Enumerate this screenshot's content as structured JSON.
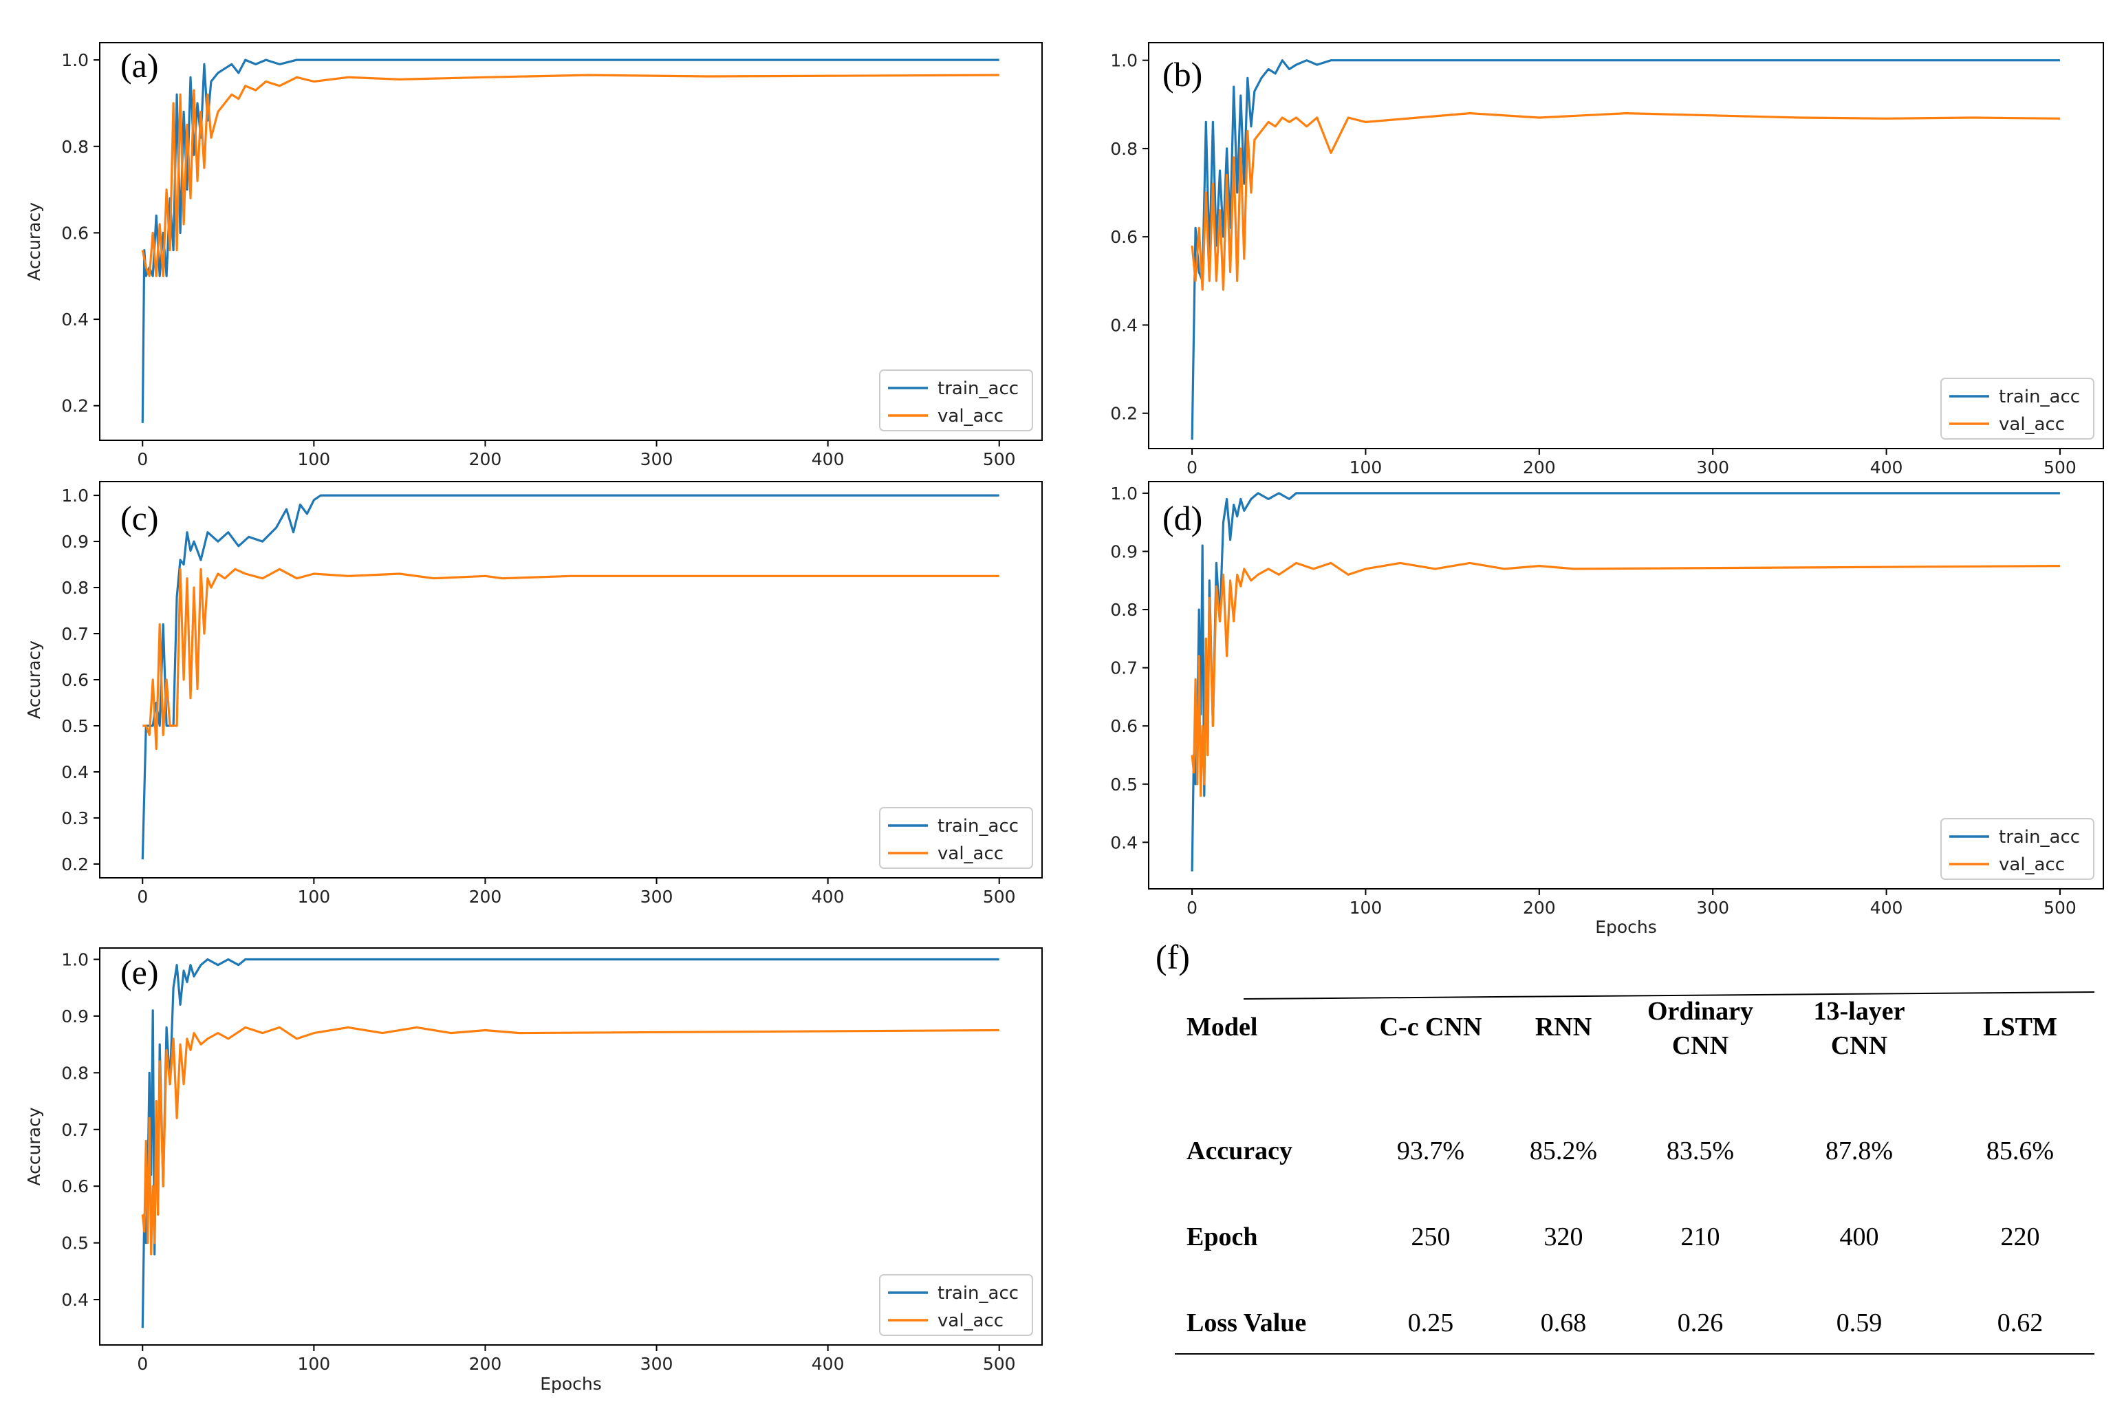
{
  "chart_data": [
    {
      "type": "line",
      "panel_label": "(a)",
      "ylabel": "Accuracy",
      "xlabel": "",
      "xlim": [
        -25,
        525
      ],
      "ylim": [
        0.12,
        1.04
      ],
      "xticks": [
        0,
        100,
        200,
        300,
        400,
        500
      ],
      "yticks": [
        0.2,
        0.4,
        0.6,
        0.8,
        1.0
      ],
      "ytick_labels": [
        "0.2",
        "0.4",
        "0.6",
        "0.8",
        "1.0"
      ],
      "legend": "bottom-right",
      "series": [
        {
          "name": "train_acc",
          "color": "#1f77b4",
          "final": 1.0,
          "x": [
            0,
            1,
            2,
            4,
            6,
            8,
            10,
            12,
            14,
            16,
            18,
            20,
            22,
            24,
            26,
            28,
            30,
            32,
            34,
            36,
            38,
            40,
            44,
            48,
            52,
            56,
            60,
            66,
            72,
            80,
            90,
            100,
            500
          ],
          "y": [
            0.16,
            0.56,
            0.5,
            0.52,
            0.5,
            0.64,
            0.5,
            0.6,
            0.5,
            0.68,
            0.56,
            0.92,
            0.6,
            0.88,
            0.7,
            0.96,
            0.78,
            0.9,
            0.82,
            0.99,
            0.86,
            0.95,
            0.97,
            0.98,
            0.99,
            0.97,
            1.0,
            0.99,
            1.0,
            0.99,
            1.0,
            1.0,
            1.0
          ]
        },
        {
          "name": "val_acc",
          "color": "#ff7f0e",
          "final": 0.965,
          "x": [
            0,
            2,
            4,
            6,
            8,
            10,
            12,
            14,
            16,
            18,
            20,
            22,
            24,
            26,
            28,
            30,
            32,
            34,
            36,
            38,
            40,
            44,
            48,
            52,
            56,
            60,
            66,
            72,
            80,
            90,
            100,
            120,
            150,
            200,
            260,
            330,
            500
          ],
          "y": [
            0.56,
            0.52,
            0.5,
            0.6,
            0.5,
            0.62,
            0.5,
            0.7,
            0.56,
            0.9,
            0.56,
            0.92,
            0.62,
            0.85,
            0.68,
            0.93,
            0.72,
            0.88,
            0.75,
            0.92,
            0.82,
            0.88,
            0.9,
            0.92,
            0.91,
            0.94,
            0.93,
            0.95,
            0.94,
            0.96,
            0.95,
            0.96,
            0.955,
            0.96,
            0.965,
            0.962,
            0.965
          ]
        }
      ]
    },
    {
      "type": "line",
      "panel_label": "(b)",
      "ylabel": "",
      "xlabel": "",
      "xlim": [
        -25,
        525
      ],
      "ylim": [
        0.12,
        1.04
      ],
      "xticks": [
        0,
        100,
        200,
        300,
        400,
        500
      ],
      "yticks": [
        0.2,
        0.4,
        0.6,
        0.8,
        1.0
      ],
      "ytick_labels": [
        "0.2",
        "0.4",
        "0.6",
        "0.8",
        "1.0"
      ],
      "legend": "bottom-right",
      "series": [
        {
          "name": "train_acc",
          "color": "#1f77b4",
          "final": 1.0,
          "x": [
            0,
            2,
            4,
            6,
            8,
            10,
            12,
            14,
            16,
            18,
            20,
            22,
            24,
            26,
            28,
            30,
            32,
            34,
            36,
            40,
            44,
            48,
            52,
            56,
            60,
            66,
            72,
            80,
            90,
            500
          ],
          "y": [
            0.14,
            0.62,
            0.52,
            0.5,
            0.86,
            0.55,
            0.86,
            0.58,
            0.75,
            0.6,
            0.8,
            0.62,
            0.94,
            0.7,
            0.92,
            0.72,
            0.96,
            0.85,
            0.93,
            0.96,
            0.98,
            0.97,
            1.0,
            0.98,
            0.99,
            1.0,
            0.99,
            1.0,
            1.0,
            1.0
          ]
        },
        {
          "name": "val_acc",
          "color": "#ff7f0e",
          "final": 0.87,
          "x": [
            0,
            2,
            4,
            6,
            8,
            10,
            12,
            14,
            16,
            18,
            20,
            22,
            24,
            26,
            28,
            30,
            32,
            34,
            36,
            40,
            44,
            48,
            52,
            56,
            60,
            66,
            72,
            80,
            90,
            100,
            130,
            160,
            200,
            250,
            300,
            350,
            400,
            450,
            500
          ],
          "y": [
            0.58,
            0.5,
            0.62,
            0.48,
            0.7,
            0.5,
            0.72,
            0.5,
            0.66,
            0.48,
            0.74,
            0.52,
            0.78,
            0.5,
            0.8,
            0.55,
            0.84,
            0.7,
            0.82,
            0.84,
            0.86,
            0.85,
            0.87,
            0.86,
            0.87,
            0.85,
            0.87,
            0.79,
            0.87,
            0.86,
            0.87,
            0.88,
            0.87,
            0.88,
            0.875,
            0.87,
            0.868,
            0.87,
            0.868
          ]
        }
      ]
    },
    {
      "type": "line",
      "panel_label": "(c)",
      "ylabel": "Accuracy",
      "xlabel": "",
      "xlim": [
        -25,
        525
      ],
      "ylim": [
        0.17,
        1.03
      ],
      "xticks": [
        0,
        100,
        200,
        300,
        400,
        500
      ],
      "yticks": [
        0.2,
        0.3,
        0.4,
        0.5,
        0.6,
        0.7,
        0.8,
        0.9,
        1.0
      ],
      "ytick_labels": [
        "0.2",
        "0.3",
        "0.4",
        "0.5",
        "0.6",
        "0.7",
        "0.8",
        "0.9",
        "1.0"
      ],
      "legend": "bottom-right",
      "series": [
        {
          "name": "train_acc",
          "color": "#1f77b4",
          "final": 1.0,
          "x": [
            0,
            2,
            4,
            6,
            8,
            10,
            12,
            14,
            16,
            18,
            20,
            22,
            24,
            26,
            28,
            30,
            34,
            38,
            44,
            50,
            56,
            62,
            70,
            78,
            84,
            88,
            92,
            96,
            100,
            104,
            500
          ],
          "y": [
            0.21,
            0.5,
            0.5,
            0.5,
            0.55,
            0.5,
            0.72,
            0.5,
            0.5,
            0.5,
            0.78,
            0.86,
            0.85,
            0.92,
            0.88,
            0.9,
            0.86,
            0.92,
            0.9,
            0.92,
            0.89,
            0.91,
            0.9,
            0.93,
            0.97,
            0.92,
            0.98,
            0.96,
            0.99,
            1.0,
            1.0
          ]
        },
        {
          "name": "val_acc",
          "color": "#ff7f0e",
          "final": 0.825,
          "x": [
            0,
            2,
            4,
            6,
            8,
            10,
            12,
            14,
            16,
            18,
            20,
            22,
            24,
            26,
            28,
            30,
            32,
            34,
            36,
            38,
            40,
            44,
            48,
            54,
            60,
            70,
            80,
            90,
            100,
            120,
            150,
            170,
            200,
            210,
            250,
            300,
            500
          ],
          "y": [
            0.5,
            0.5,
            0.48,
            0.6,
            0.45,
            0.72,
            0.48,
            0.6,
            0.5,
            0.5,
            0.5,
            0.84,
            0.6,
            0.82,
            0.56,
            0.8,
            0.58,
            0.84,
            0.7,
            0.82,
            0.8,
            0.83,
            0.82,
            0.84,
            0.83,
            0.82,
            0.84,
            0.82,
            0.83,
            0.825,
            0.83,
            0.82,
            0.825,
            0.82,
            0.825,
            0.825,
            0.825
          ]
        }
      ]
    },
    {
      "type": "line",
      "panel_label": "(d)",
      "ylabel": "",
      "xlabel": "Epochs",
      "xlim": [
        -25,
        525
      ],
      "ylim": [
        0.32,
        1.02
      ],
      "xticks": [
        0,
        100,
        200,
        300,
        400,
        500
      ],
      "yticks": [
        0.4,
        0.5,
        0.6,
        0.7,
        0.8,
        0.9,
        1.0
      ],
      "ytick_labels": [
        "0.4",
        "0.5",
        "0.6",
        "0.7",
        "0.8",
        "0.9",
        "1.0"
      ],
      "legend": "bottom-right",
      "series": [
        {
          "name": "train_acc",
          "color": "#1f77b4",
          "final": 1.0,
          "x": [
            0,
            1,
            2,
            3,
            4,
            5,
            6,
            7,
            8,
            9,
            10,
            12,
            14,
            16,
            18,
            20,
            22,
            24,
            26,
            28,
            30,
            34,
            38,
            44,
            50,
            56,
            60,
            66,
            500
          ],
          "y": [
            0.35,
            0.55,
            0.5,
            0.6,
            0.8,
            0.62,
            0.91,
            0.48,
            0.75,
            0.55,
            0.85,
            0.6,
            0.88,
            0.78,
            0.95,
            0.99,
            0.92,
            0.98,
            0.96,
            0.99,
            0.97,
            0.99,
            1.0,
            0.99,
            1.0,
            0.99,
            1.0,
            1.0,
            1.0
          ]
        },
        {
          "name": "val_acc",
          "color": "#ff7f0e",
          "final": 0.875,
          "x": [
            0,
            1,
            2,
            3,
            4,
            5,
            6,
            7,
            8,
            9,
            10,
            12,
            14,
            16,
            18,
            20,
            22,
            24,
            26,
            28,
            30,
            34,
            38,
            44,
            50,
            60,
            70,
            80,
            90,
            100,
            120,
            140,
            160,
            180,
            200,
            220,
            500
          ],
          "y": [
            0.55,
            0.52,
            0.68,
            0.5,
            0.72,
            0.48,
            0.6,
            0.5,
            0.75,
            0.55,
            0.82,
            0.6,
            0.84,
            0.78,
            0.86,
            0.72,
            0.85,
            0.78,
            0.86,
            0.84,
            0.87,
            0.85,
            0.86,
            0.87,
            0.86,
            0.88,
            0.87,
            0.88,
            0.86,
            0.87,
            0.88,
            0.87,
            0.88,
            0.87,
            0.875,
            0.87,
            0.875
          ]
        }
      ]
    },
    {
      "type": "line",
      "panel_label": "(e)",
      "ylabel": "Accuracy",
      "xlabel": "Epochs",
      "xlim": [
        -25,
        525
      ],
      "ylim": [
        0.32,
        1.02
      ],
      "xticks": [
        0,
        100,
        200,
        300,
        400,
        500
      ],
      "yticks": [
        0.4,
        0.5,
        0.6,
        0.7,
        0.8,
        0.9,
        1.0
      ],
      "ytick_labels": [
        "0.4",
        "0.5",
        "0.6",
        "0.7",
        "0.8",
        "0.9",
        "1.0"
      ],
      "legend": "bottom-right",
      "series": [
        {
          "name": "train_acc",
          "color": "#1f77b4",
          "final": 1.0,
          "x": [
            0,
            1,
            2,
            3,
            4,
            5,
            6,
            7,
            8,
            9,
            10,
            12,
            14,
            16,
            18,
            20,
            22,
            24,
            26,
            28,
            30,
            34,
            38,
            44,
            50,
            56,
            60,
            66,
            500
          ],
          "y": [
            0.35,
            0.55,
            0.5,
            0.6,
            0.8,
            0.62,
            0.91,
            0.48,
            0.75,
            0.55,
            0.85,
            0.6,
            0.88,
            0.78,
            0.95,
            0.99,
            0.92,
            0.98,
            0.96,
            0.99,
            0.97,
            0.99,
            1.0,
            0.99,
            1.0,
            0.99,
            1.0,
            1.0,
            1.0
          ]
        },
        {
          "name": "val_acc",
          "color": "#ff7f0e",
          "final": 0.875,
          "x": [
            0,
            1,
            2,
            3,
            4,
            5,
            6,
            7,
            8,
            9,
            10,
            12,
            14,
            16,
            18,
            20,
            22,
            24,
            26,
            28,
            30,
            34,
            38,
            44,
            50,
            60,
            70,
            80,
            90,
            100,
            120,
            140,
            160,
            180,
            200,
            220,
            500
          ],
          "y": [
            0.55,
            0.52,
            0.68,
            0.5,
            0.72,
            0.48,
            0.6,
            0.5,
            0.75,
            0.55,
            0.82,
            0.6,
            0.84,
            0.78,
            0.86,
            0.72,
            0.85,
            0.78,
            0.86,
            0.84,
            0.87,
            0.85,
            0.86,
            0.87,
            0.86,
            0.88,
            0.87,
            0.88,
            0.86,
            0.87,
            0.88,
            0.87,
            0.88,
            0.87,
            0.875,
            0.87,
            0.875
          ]
        }
      ]
    },
    {
      "type": "table",
      "panel_label": "(f)",
      "columns": [
        "Model",
        "C-c CNN",
        "RNN",
        "Ordinary CNN",
        "13-layer CNN",
        "LSTM"
      ],
      "header_lines": [
        [
          "Model"
        ],
        [
          "C-c CNN"
        ],
        [
          "RNN"
        ],
        [
          "Ordinary",
          "CNN"
        ],
        [
          "13-layer",
          "CNN"
        ],
        [
          "LSTM"
        ]
      ],
      "rows": [
        [
          "Accuracy",
          "93.7%",
          "85.2%",
          "83.5%",
          "87.8%",
          "85.6%"
        ],
        [
          "Epoch",
          "250",
          "320",
          "210",
          "400",
          "220"
        ],
        [
          "Loss Value",
          "0.25",
          "0.68",
          "0.26",
          "0.59",
          "0.62"
        ]
      ]
    }
  ]
}
